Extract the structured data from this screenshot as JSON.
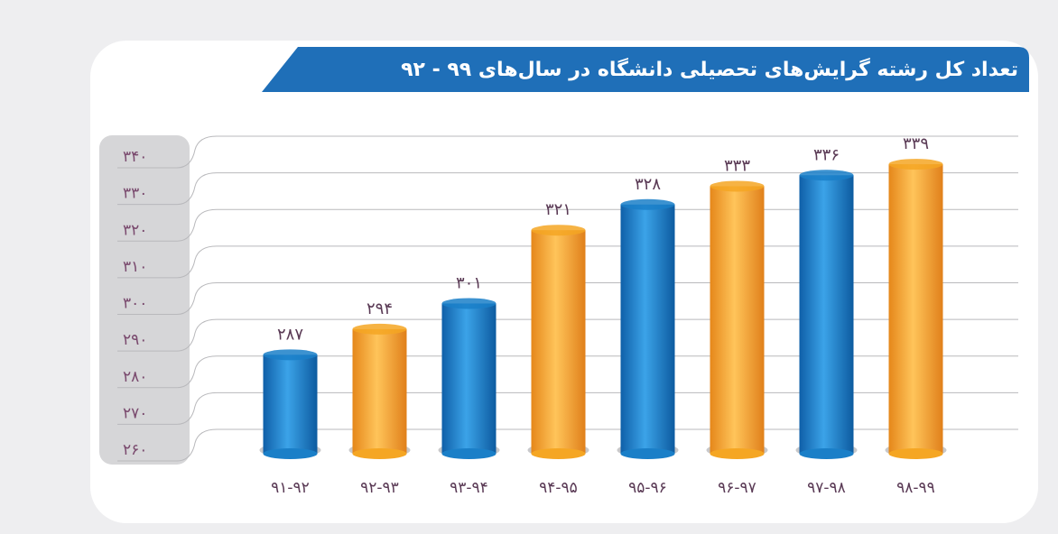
{
  "chart_data": {
    "type": "bar",
    "title": "تعداد کل رشته گرایش‌های تحصیلی دانشگاه در سال‌های ۹۹ - ۹۲",
    "categories": [
      "۹۱-۹۲",
      "۹۲-۹۳",
      "۹۳-۹۴",
      "۹۴-۹۵",
      "۹۵-۹۶",
      "۹۶-۹۷",
      "۹۷-۹۸",
      "۹۸-۹۹"
    ],
    "values": [
      287,
      294,
      301,
      321,
      328,
      333,
      336,
      339
    ],
    "value_labels": [
      "۲۸۷",
      "۲۹۴",
      "۳۰۱",
      "۳۲۱",
      "۳۲۸",
      "۳۳۳",
      "۳۳۶",
      "۳۳۹"
    ],
    "colors": [
      "#1a7fc8",
      "#f5a623",
      "#1a7fc8",
      "#f5a623",
      "#1a7fc8",
      "#f5a623",
      "#1a7fc8",
      "#f5a623"
    ],
    "ylim": [
      260,
      340
    ],
    "yticks": [
      {
        "value": 260,
        "label": "۲۶۰"
      },
      {
        "value": 270,
        "label": "۲۷۰"
      },
      {
        "value": 280,
        "label": "۲۸۰"
      },
      {
        "value": 290,
        "label": "۲۹۰"
      },
      {
        "value": 300,
        "label": "۳۰۰"
      },
      {
        "value": 310,
        "label": "۳۱۰"
      },
      {
        "value": 320,
        "label": "۳۲۰"
      },
      {
        "value": 330,
        "label": "۳۳۰"
      },
      {
        "value": 340,
        "label": "۳۴۰"
      }
    ],
    "grid": true
  }
}
